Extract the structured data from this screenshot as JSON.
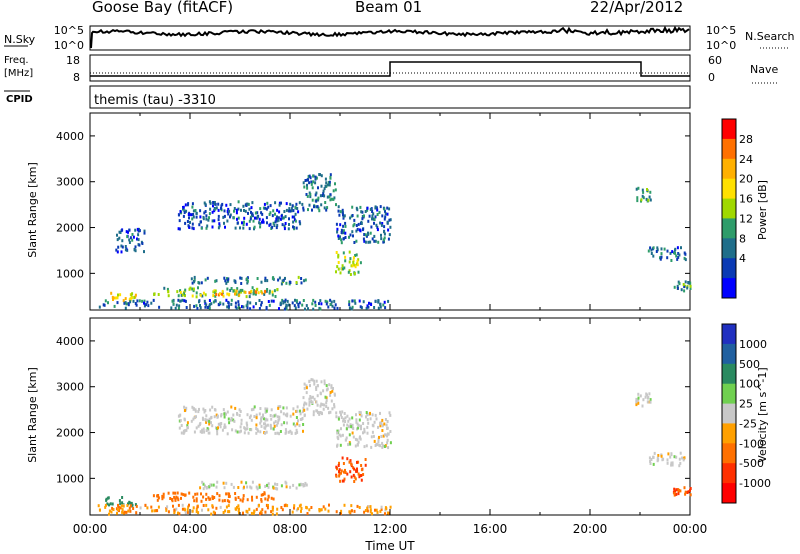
{
  "header": {
    "station": "Goose Bay (fitACF)",
    "beam": "Beam 01",
    "date": "22/Apr/2012"
  },
  "top_panels": {
    "nsky_label": "N.Sky",
    "nsky_ticks": [
      "10^5",
      "10^0"
    ],
    "nsearch_label": "N.Search",
    "nsearch_ticks": [
      "10^5",
      "10^0"
    ],
    "freq_label": "Freq.",
    "freq_unit": "[MHz]",
    "freq_ticks": [
      "18",
      "8"
    ],
    "nave_label": "Nave",
    "nave_ticks": [
      "60",
      "0"
    ],
    "cpid_label": "CPID",
    "cpid_text": "themis (tau) -3310"
  },
  "chart_data": [
    {
      "type": "heatmap",
      "name": "power",
      "ylabel": "Slant Range [km]",
      "ylim": [
        200,
        4500
      ],
      "yticks": [
        1000,
        2000,
        3000,
        4000
      ],
      "xlim": [
        0,
        24
      ],
      "colorbar": {
        "label": "Power [dB]",
        "ticks": [
          "28",
          "24",
          "20",
          "16",
          "12",
          "8",
          "4"
        ],
        "colors": [
          "#ff0000",
          "#ff7000",
          "#ffb000",
          "#ffe000",
          "#a0d800",
          "#2e9c6a",
          "#1f6e8a",
          "#0a3ab4",
          "#0000ff"
        ]
      },
      "regions": [
        {
          "t0": 0.6,
          "t1": 1.8,
          "r0": 420,
          "r1": 620,
          "v": 20
        },
        {
          "t0": 2.5,
          "t1": 7.5,
          "r0": 520,
          "r1": 720,
          "v": 14
        },
        {
          "t0": 5.0,
          "t1": 7.0,
          "r0": 560,
          "r1": 660,
          "v": 22
        },
        {
          "t0": 4.0,
          "t1": 8.7,
          "r0": 800,
          "r1": 950,
          "v": 10
        },
        {
          "t0": 3.5,
          "t1": 8.5,
          "r0": 2000,
          "r1": 2600,
          "v": 7
        },
        {
          "t0": 8.5,
          "t1": 9.8,
          "r0": 2400,
          "r1": 3200,
          "v": 9
        },
        {
          "t0": 9.8,
          "t1": 12.0,
          "r0": 1700,
          "r1": 2500,
          "v": 8
        },
        {
          "t0": 9.8,
          "t1": 10.8,
          "r0": 1000,
          "r1": 1500,
          "v": 16
        },
        {
          "t0": 1.0,
          "t1": 2.2,
          "r0": 1500,
          "r1": 2000,
          "v": 6
        },
        {
          "t0": 21.8,
          "t1": 22.4,
          "r0": 2600,
          "r1": 2900,
          "v": 12
        },
        {
          "t0": 22.3,
          "t1": 23.8,
          "r0": 1300,
          "r1": 1600,
          "v": 8
        },
        {
          "t0": 23.3,
          "t1": 24.0,
          "r0": 650,
          "r1": 850,
          "v": 10
        },
        {
          "t0": 0.3,
          "t1": 12.0,
          "r0": 250,
          "r1": 450,
          "v": 8
        }
      ]
    },
    {
      "type": "heatmap",
      "name": "velocity",
      "ylabel": "Slant Range [km]",
      "xlabel": "Time UT",
      "ylim": [
        200,
        4500
      ],
      "yticks": [
        1000,
        2000,
        3000,
        4000
      ],
      "xlim": [
        0,
        24
      ],
      "xticks": [
        "00:00",
        "04:00",
        "08:00",
        "12:00",
        "16:00",
        "20:00",
        "00:00"
      ],
      "colorbar": {
        "label": "Velocity [m s^-1]",
        "ticks": [
          "1000",
          "500",
          "100",
          "25",
          "-25",
          "-100",
          "-500",
          "-1000"
        ],
        "colors": [
          "#2030c0",
          "#2060a0",
          "#2a8a60",
          "#70d050",
          "#c8c8c8",
          "#ffa000",
          "#ff7000",
          "#ff3000",
          "#ff0000"
        ]
      },
      "regions": [
        {
          "t0": 0.6,
          "t1": 1.8,
          "r0": 420,
          "r1": 620,
          "v": 150
        },
        {
          "t0": 2.5,
          "t1": 7.5,
          "r0": 520,
          "r1": 720,
          "v": -150
        },
        {
          "t0": 4.0,
          "t1": 8.7,
          "r0": 800,
          "r1": 950,
          "v": 0
        },
        {
          "t0": 3.5,
          "t1": 8.5,
          "r0": 2000,
          "r1": 2600,
          "v": 0
        },
        {
          "t0": 8.5,
          "t1": 9.8,
          "r0": 2400,
          "r1": 3200,
          "v": 0
        },
        {
          "t0": 9.8,
          "t1": 12.0,
          "r0": 1700,
          "r1": 2500,
          "v": 0
        },
        {
          "t0": 9.8,
          "t1": 11.0,
          "r0": 950,
          "r1": 1500,
          "v": -300
        },
        {
          "t0": 21.8,
          "t1": 22.4,
          "r0": 2600,
          "r1": 2900,
          "v": 0
        },
        {
          "t0": 22.3,
          "t1": 23.8,
          "r0": 1300,
          "r1": 1600,
          "v": 0
        },
        {
          "t0": 23.3,
          "t1": 24.0,
          "r0": 650,
          "r1": 850,
          "v": -300
        },
        {
          "t0": 0.3,
          "t1": 12.0,
          "r0": 250,
          "r1": 450,
          "v": -50
        }
      ]
    }
  ]
}
